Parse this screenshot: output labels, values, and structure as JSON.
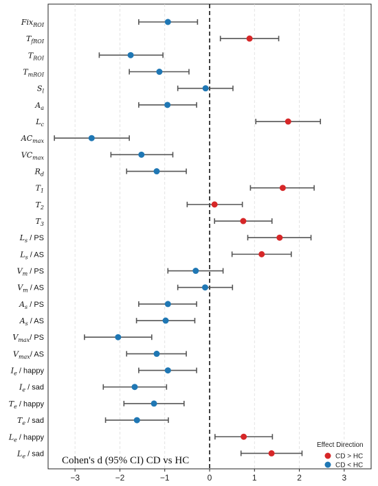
{
  "chart_data": {
    "type": "scatter",
    "subtype": "forest-plot",
    "title": "",
    "xlabel": "",
    "ylabel": "",
    "xlim": [
      -3.6,
      3.6
    ],
    "x_ticks": [
      -3,
      -2,
      -1,
      0,
      1,
      2,
      3
    ],
    "x_tick_labels": [
      "−3",
      "−2",
      "−1",
      "0",
      "1",
      "2",
      "3"
    ],
    "grid": "vertical dashed",
    "reference_line": 0,
    "annotation": "Cohen's d (95% CI) CD vs HC",
    "legend": {
      "title": "Effect Direction",
      "placement": "bottom-right",
      "entries": [
        {
          "key": "pos",
          "label": "CD > HC",
          "color": "#d62728"
        },
        {
          "key": "neg",
          "label": "CD < HC",
          "color": "#1f77b4"
        }
      ]
    },
    "colors": {
      "pos": "#d62728",
      "neg": "#1f77b4",
      "whisker": "#555555"
    },
    "rows": [
      {
        "base": "Fix",
        "sub": "ROI",
        "suffix": "",
        "d": -0.93,
        "lo": -1.58,
        "hi": -0.27,
        "direction": "neg"
      },
      {
        "base": "T",
        "sub": "fROI",
        "suffix": "",
        "d": 0.89,
        "lo": 0.24,
        "hi": 1.54,
        "direction": "pos"
      },
      {
        "base": "T",
        "sub": "ROI",
        "suffix": "",
        "d": -1.76,
        "lo": -2.46,
        "hi": -1.04,
        "direction": "neg"
      },
      {
        "base": "T",
        "sub": "mROI",
        "suffix": "",
        "d": -1.12,
        "lo": -1.79,
        "hi": -0.46,
        "direction": "neg"
      },
      {
        "base": "S",
        "sub": "l",
        "suffix": "",
        "d": -0.09,
        "lo": -0.71,
        "hi": 0.52,
        "direction": "neg"
      },
      {
        "base": "A",
        "sub": "a",
        "suffix": "",
        "d": -0.94,
        "lo": -1.58,
        "hi": -0.29,
        "direction": "neg"
      },
      {
        "base": "L",
        "sub": "c",
        "suffix": "",
        "d": 1.75,
        "lo": 1.03,
        "hi": 2.47,
        "direction": "pos"
      },
      {
        "base": "AC",
        "sub": "max",
        "suffix": "",
        "d": -2.63,
        "lo": -3.46,
        "hi": -1.79,
        "direction": "neg"
      },
      {
        "base": "VC",
        "sub": "max",
        "suffix": "",
        "d": -1.52,
        "lo": -2.2,
        "hi": -0.82,
        "direction": "neg"
      },
      {
        "base": "R",
        "sub": "d",
        "suffix": "",
        "d": -1.18,
        "lo": -1.85,
        "hi": -0.52,
        "direction": "neg"
      },
      {
        "base": "T",
        "sub": "1",
        "suffix": "",
        "d": 1.63,
        "lo": 0.91,
        "hi": 2.33,
        "direction": "pos"
      },
      {
        "base": "T",
        "sub": "2",
        "suffix": "",
        "d": 0.11,
        "lo": -0.5,
        "hi": 0.73,
        "direction": "pos"
      },
      {
        "base": "T",
        "sub": "3",
        "suffix": "",
        "d": 0.75,
        "lo": 0.11,
        "hi": 1.39,
        "direction": "pos"
      },
      {
        "base": "L",
        "sub": "s",
        "suffix": " / PS",
        "d": 1.56,
        "lo": 0.85,
        "hi": 2.26,
        "direction": "pos"
      },
      {
        "base": "L",
        "sub": "s",
        "suffix": " / AS",
        "d": 1.16,
        "lo": 0.5,
        "hi": 1.82,
        "direction": "pos"
      },
      {
        "base": "V",
        "sub": "m",
        "suffix": " / PS",
        "d": -0.31,
        "lo": -0.93,
        "hi": 0.3,
        "direction": "neg"
      },
      {
        "base": "V",
        "sub": "m",
        "suffix": " / AS",
        "d": -0.1,
        "lo": -0.71,
        "hi": 0.51,
        "direction": "neg"
      },
      {
        "base": "A",
        "sub": "s",
        "suffix": " / PS",
        "d": -0.93,
        "lo": -1.58,
        "hi": -0.29,
        "direction": "neg"
      },
      {
        "base": "A",
        "sub": "s",
        "suffix": " / AS",
        "d": -0.98,
        "lo": -1.63,
        "hi": -0.33,
        "direction": "neg"
      },
      {
        "base": "V",
        "sub": "max",
        "suffix": "/ PS",
        "d": -2.04,
        "lo": -2.79,
        "hi": -1.29,
        "direction": "neg"
      },
      {
        "base": "V",
        "sub": "max",
        "suffix": "/ AS",
        "d": -1.18,
        "lo": -1.85,
        "hi": -0.52,
        "direction": "neg"
      },
      {
        "base": "I",
        "sub": "e",
        "suffix": " / happy",
        "d": -0.93,
        "lo": -1.58,
        "hi": -0.29,
        "direction": "neg"
      },
      {
        "base": "I",
        "sub": "e",
        "suffix": " / sad",
        "d": -1.67,
        "lo": -2.37,
        "hi": -0.96,
        "direction": "neg"
      },
      {
        "base": "T",
        "sub": "e",
        "suffix": " / happy",
        "d": -1.24,
        "lo": -1.91,
        "hi": -0.57,
        "direction": "neg"
      },
      {
        "base": "T",
        "sub": "e",
        "suffix": " / sad",
        "d": -1.62,
        "lo": -2.32,
        "hi": -0.92,
        "direction": "neg"
      },
      {
        "base": "L",
        "sub": "e",
        "suffix": " / happy",
        "d": 0.76,
        "lo": 0.12,
        "hi": 1.4,
        "direction": "pos"
      },
      {
        "base": "L",
        "sub": "e",
        "suffix": " / sad",
        "d": 1.38,
        "lo": 0.7,
        "hi": 2.06,
        "direction": "pos"
      }
    ]
  }
}
